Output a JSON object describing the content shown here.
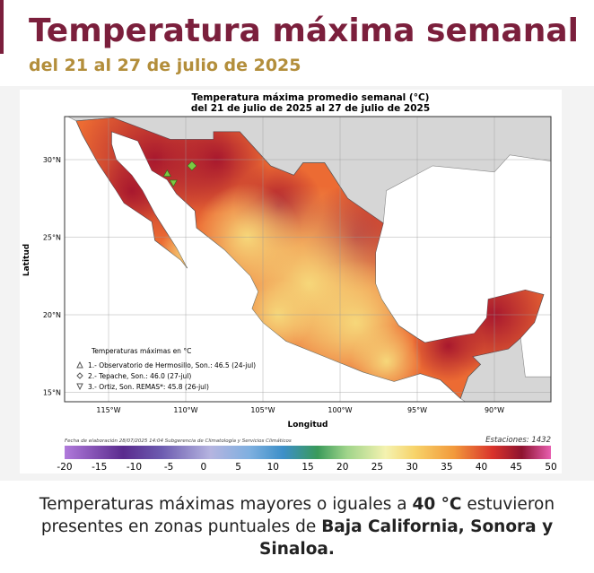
{
  "header": {
    "title": "Temperatura máxima semanal",
    "subtitle": "del 21 al 27 de julio de 2025"
  },
  "map": {
    "title_lines": [
      "Temperatura máxima promedio semanal (°C)",
      "del 21 de julio de 2025 al 27 de julio de 2025"
    ],
    "y_label": "Latitud",
    "x_label": "Longitud",
    "lat_ticks": [
      "30°N",
      "25°N",
      "20°N",
      "15°N"
    ],
    "lon_ticks": [
      "115°W",
      "110°W",
      "105°W",
      "100°W",
      "95°W",
      "90°W"
    ],
    "legend_title": "Temperaturas máximas en °C",
    "legend_items": [
      "1.- Observatorio de Hermosillo, Son.: 46.5 (24-jul)",
      "2.- Tepache, Son.: 46.0 (27-jul)",
      "3.- Ortiz, Son. REMAS*: 45.8 (26-jul)"
    ],
    "footnote": "Fecha de elaboración 28/07/2025 14:04 Subgerencia de Climatología y Servicios Climáticos",
    "stations": "Estaciones: 1432",
    "colorbar_ticks": [
      "-20",
      "-15",
      "-10",
      "-5",
      "0",
      "5",
      "10",
      "15",
      "20",
      "25",
      "30",
      "35",
      "40",
      "45",
      "50"
    ]
  },
  "caption": [
    {
      "text": "Temperaturas máximas mayores o iguales a ",
      "bold": false
    },
    {
      "text": "40 °C",
      "bold": true
    },
    {
      "text": " estuvieron presentes en zonas puntuales de ",
      "bold": false
    },
    {
      "text": "Baja California, Sonora y Sinaloa.",
      "bold": true
    }
  ]
}
